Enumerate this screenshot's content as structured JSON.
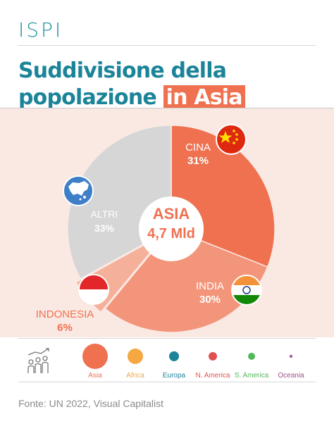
{
  "brand": {
    "logo_text": "ISPI"
  },
  "header": {
    "title_line1": "Suddivisione della",
    "title_line2_plain": "popolazione ",
    "title_line2_highlight": "in Asia"
  },
  "colors": {
    "accent": "#ef7150",
    "teal": "#1b8499",
    "panel": "#fae9e3"
  },
  "chart_data": {
    "type": "pie",
    "title": "Suddivisione della popolazione in Asia",
    "center_label": {
      "line1": "ASIA",
      "line2": "4,7 Mld"
    },
    "slices": [
      {
        "name": "CINA",
        "value": 31,
        "value_label": "31%",
        "color": "#ef7150",
        "icon": "china-flag-icon"
      },
      {
        "name": "INDIA",
        "value": 30,
        "value_label": "30%",
        "color": "#f3957a",
        "icon": "india-flag-icon"
      },
      {
        "name": "INDONESIA",
        "value": 6,
        "value_label": "6%",
        "color": "#f5b09a",
        "icon": "indonesia-flag-icon"
      },
      {
        "name": "ALTRI",
        "value": 33,
        "value_label": "33%",
        "color": "#d6d6d6",
        "icon": "asia-map-icon"
      }
    ],
    "legend": [
      {
        "name": "Asia",
        "color": "#ef7150"
      },
      {
        "name": "Africa",
        "color": "#f5a742"
      },
      {
        "name": "Europa",
        "color": "#1b8499"
      },
      {
        "name": "N. America",
        "color": "#e25050"
      },
      {
        "name": "S. America",
        "color": "#52b857"
      },
      {
        "name": "Oceania",
        "color": "#9d4f86"
      }
    ]
  },
  "footer": {
    "source": "Fonte: UN 2022, Visual Capitalist"
  }
}
